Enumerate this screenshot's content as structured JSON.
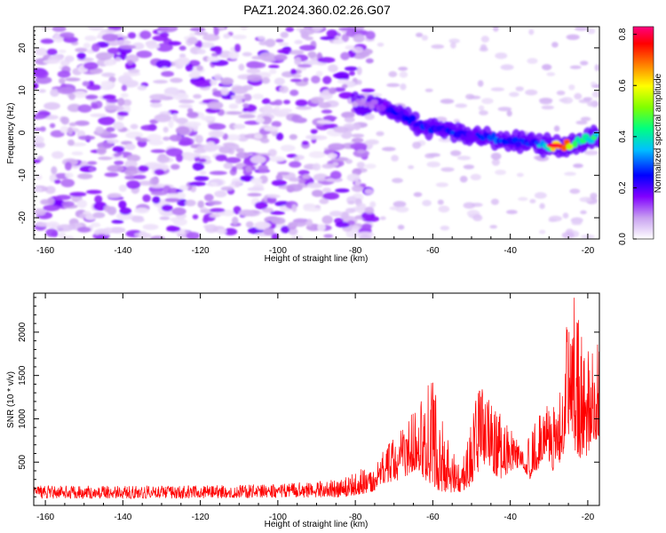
{
  "figure": {
    "title": "PAZ1.2024.360.02.26.G07"
  },
  "chart_data": [
    {
      "type": "heatmap",
      "title": "PAZ1.2024.360.02.26.G07",
      "xlabel": "Height of straight line (km)",
      "ylabel": "Frequency (Hz)",
      "xlim": [
        -163,
        -17
      ],
      "ylim": [
        -25,
        25
      ],
      "xticks": [
        -160,
        -140,
        -120,
        -100,
        -80,
        -60,
        -40,
        -20
      ],
      "yticks": [
        -20,
        -10,
        0,
        10,
        20
      ],
      "colorbar": {
        "label": "Normalized spectral amplitude",
        "range": [
          0.0,
          0.83
        ],
        "ticks": [
          0.0,
          0.2,
          0.4,
          0.6,
          0.8
        ],
        "colors": [
          "#ffffff",
          "#c8a0f0",
          "#8000ff",
          "#0000ff",
          "#00c0ff",
          "#00ff80",
          "#80ff00",
          "#ffff00",
          "#ff8000",
          "#ff0000",
          "#ff0080"
        ]
      },
      "noise_region": {
        "x": [
          -163,
          -82
        ],
        "y": [
          -25,
          25
        ],
        "amplitude": [
          0.02,
          0.18
        ]
      },
      "ridge": {
        "x": [
          -80,
          -75,
          -72,
          -70,
          -66,
          -62,
          -58,
          -54,
          -50,
          -46,
          -42,
          -38,
          -34,
          -30,
          -27,
          -24,
          -20,
          -17
        ],
        "frequency": [
          7,
          6.5,
          6,
          5,
          3,
          1.5,
          1,
          0,
          -0.5,
          -1,
          -1.5,
          -2,
          -2.5,
          -3,
          -3,
          -2.5,
          -1.5,
          -1
        ],
        "amplitude": [
          0.1,
          0.14,
          0.2,
          0.26,
          0.28,
          0.26,
          0.24,
          0.28,
          0.22,
          0.3,
          0.3,
          0.26,
          0.28,
          0.5,
          0.83,
          0.55,
          0.4,
          0.46
        ]
      }
    },
    {
      "type": "line",
      "xlabel": "Height of straight line (km)",
      "ylabel": "SNR (10 * v/v)",
      "xlim": [
        -163,
        -17
      ],
      "ylim": [
        0,
        2450
      ],
      "xticks": [
        -160,
        -140,
        -120,
        -100,
        -80,
        -60,
        -40,
        -20
      ],
      "yticks": [
        500,
        1000,
        1500,
        2000
      ],
      "series_color": "#ff0000",
      "envelope": {
        "x": [
          -163,
          -140,
          -120,
          -100,
          -90,
          -82,
          -76,
          -72,
          -68,
          -65,
          -63,
          -60,
          -57,
          -54,
          -51,
          -48,
          -46,
          -44,
          -42,
          -40,
          -37,
          -35,
          -33,
          -31,
          -29,
          -27,
          -25,
          -23,
          -21,
          -19,
          -17
        ],
        "base": [
          80,
          80,
          80,
          90,
          90,
          100,
          150,
          250,
          300,
          400,
          350,
          200,
          150,
          150,
          180,
          400,
          500,
          350,
          300,
          400,
          450,
          300,
          400,
          600,
          400,
          500,
          800,
          600,
          500,
          700,
          800
        ],
        "peak": [
          230,
          230,
          230,
          250,
          280,
          330,
          500,
          700,
          950,
          1250,
          1250,
          1500,
          950,
          550,
          800,
          1400,
          1300,
          1100,
          1100,
          900,
          700,
          800,
          1300,
          1200,
          1150,
          1600,
          2430,
          2430,
          1900,
          1800,
          1900
        ]
      }
    }
  ]
}
